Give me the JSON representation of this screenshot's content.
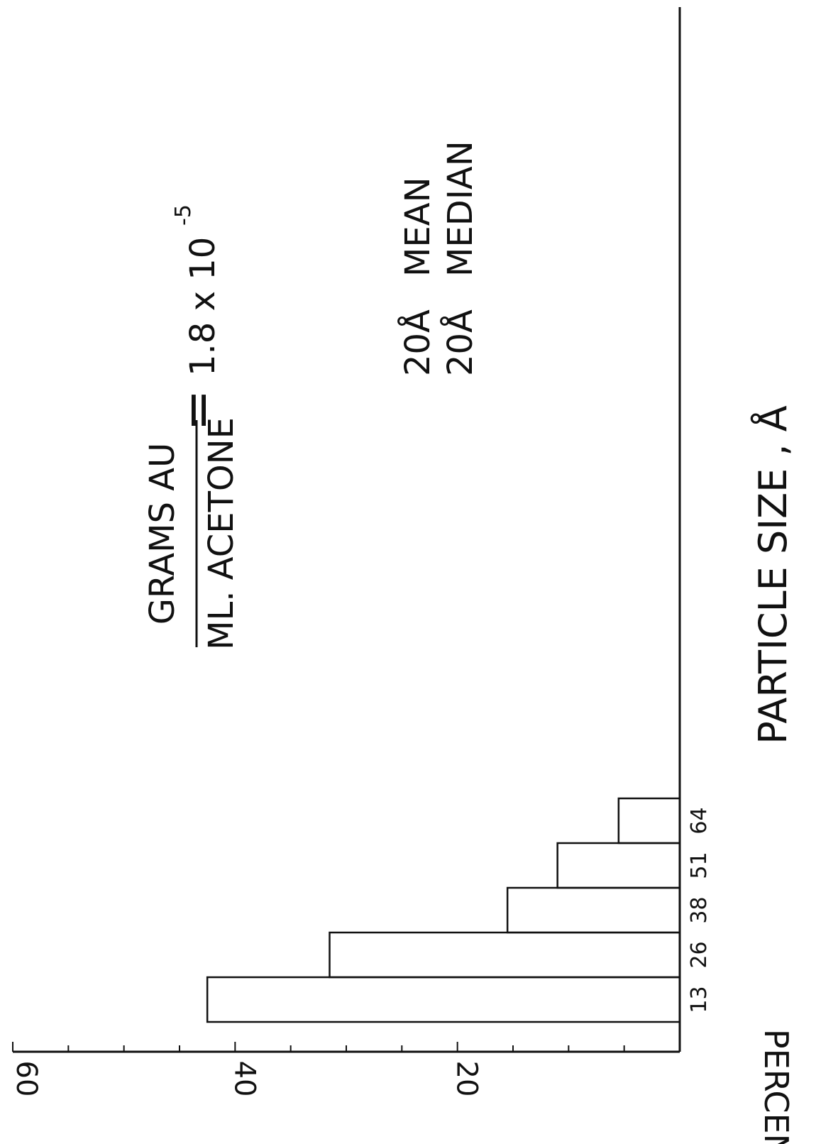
{
  "chart_data": {
    "type": "bar",
    "orientation": "rotated-90",
    "title": "",
    "xlabel": "PARTICLE SIZE , Å",
    "ylabel": "PERCENT",
    "categories": [
      "13",
      "26",
      "38",
      "51",
      "64"
    ],
    "values": [
      42.5,
      31.5,
      15.5,
      11,
      5.5
    ],
    "ylim": [
      0,
      60
    ],
    "yticks": [
      "60",
      "40",
      "20"
    ],
    "grid": false,
    "legend": "none",
    "annotations": {
      "mean_label": "MEAN",
      "mean_value": "20Å",
      "median_label": "MEDIAN",
      "median_value": "20Å",
      "ratio_numerator": "GRAMS AU",
      "ratio_denominator": "ML. ACETONE",
      "ratio_equals": "=",
      "ratio_value": "1.8  x 10",
      "ratio_exponent": "-5"
    }
  }
}
